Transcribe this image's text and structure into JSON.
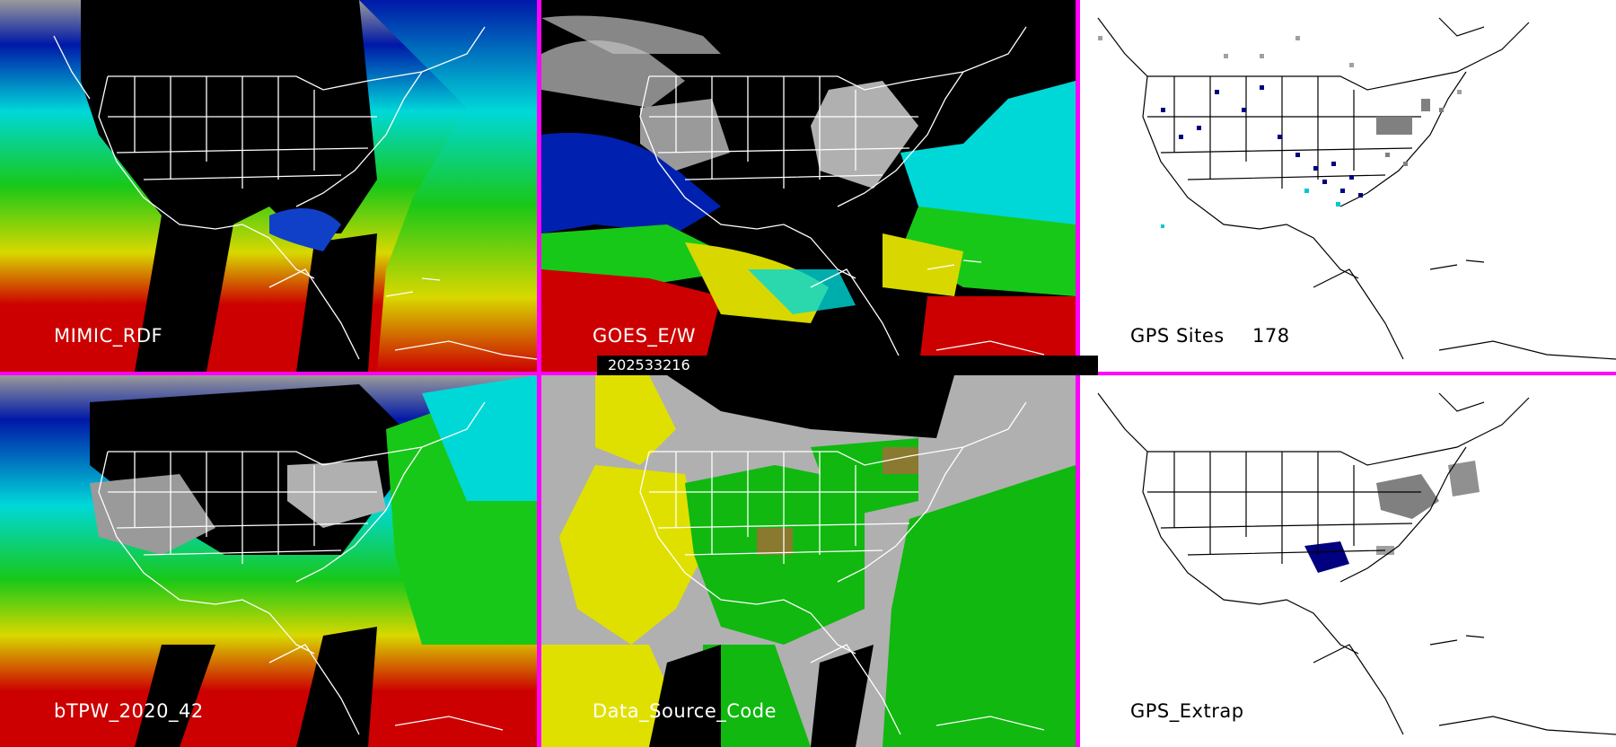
{
  "timestamp": "202533216",
  "panels": [
    {
      "id": "p1",
      "label": "MIMIC_RDF"
    },
    {
      "id": "p2",
      "label": "GOES_E/W"
    },
    {
      "id": "p3",
      "label": "GPS Sites",
      "count": "178"
    },
    {
      "id": "p4",
      "label": "bTPW_2020_42"
    },
    {
      "id": "p5",
      "label": "Data_Source_Code"
    },
    {
      "id": "p6",
      "label": "GPS_Extrap"
    }
  ],
  "colors": {
    "divider": "#ff00ff",
    "tpw_red": "#cc0000",
    "tpw_yellow": "#d8d800",
    "tpw_green": "#18c818",
    "tpw_cyan": "#00d8d8",
    "tpw_blue": "#0018a8",
    "tpw_grey": "#a8a8a8",
    "map_outline": "#ffffff",
    "source_yellow": "#e0e000",
    "source_green": "#10b810",
    "source_grey": "#b0b0b0"
  }
}
